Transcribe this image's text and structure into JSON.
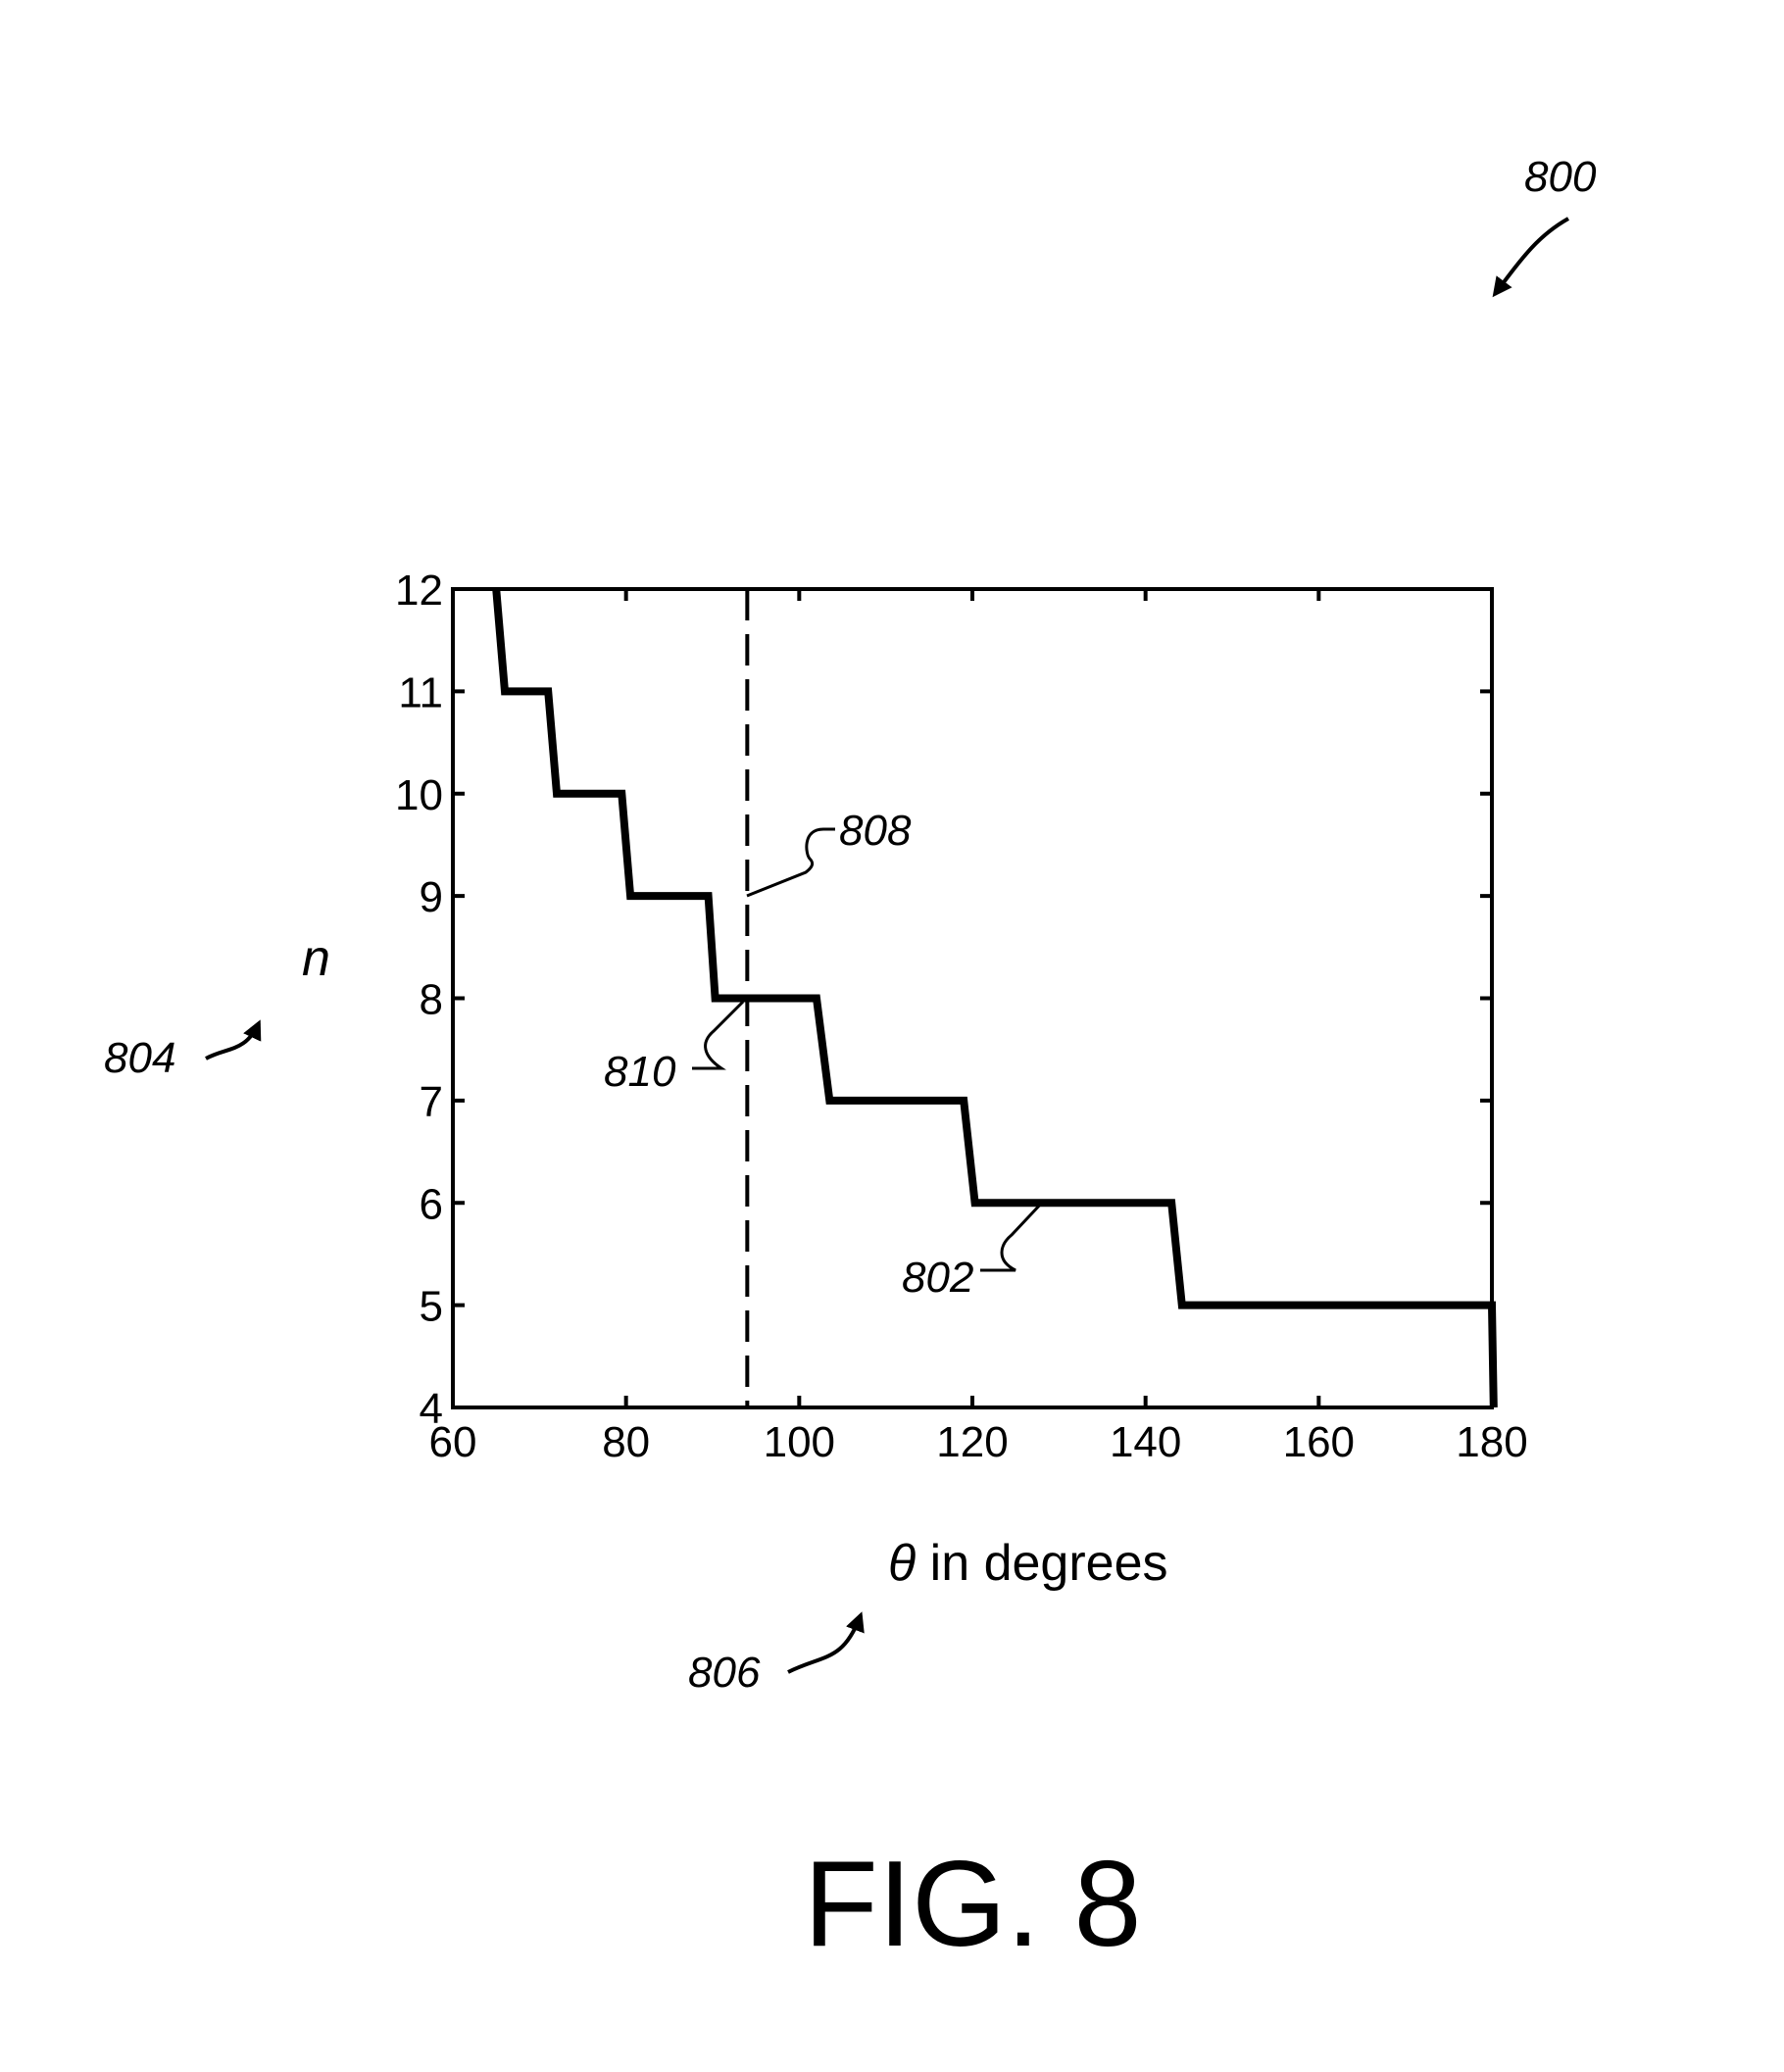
{
  "figure": {
    "reference": "800",
    "caption": "FIG. 8"
  },
  "references": {
    "curve": "802",
    "y_axis": "804",
    "x_axis": "806",
    "vertical_line": "808",
    "intersection": "810"
  },
  "colors": {
    "ink": "#000000",
    "background": "#ffffff"
  },
  "chart_data": {
    "type": "line",
    "xlabel_prefix": "θ",
    "xlabel_suffix": " in degrees",
    "ylabel": "n",
    "xlim": [
      60,
      180
    ],
    "ylim": [
      4,
      12
    ],
    "x_ticks": [
      60,
      80,
      100,
      120,
      140,
      160,
      180
    ],
    "y_ticks": [
      4,
      5,
      6,
      7,
      8,
      9,
      10,
      11,
      12
    ],
    "grid": false,
    "legend": "none",
    "series": [
      {
        "line_style": "solid-thick",
        "points": [
          [
            65,
            12
          ],
          [
            66,
            11
          ],
          [
            71,
            11
          ],
          [
            72,
            10
          ],
          [
            79.5,
            10
          ],
          [
            80.5,
            9
          ],
          [
            89.5,
            9
          ],
          [
            90.3,
            8
          ],
          [
            102,
            8
          ],
          [
            103.5,
            7
          ],
          [
            119,
            7
          ],
          [
            120.3,
            6
          ],
          [
            143,
            6
          ],
          [
            144.2,
            5
          ],
          [
            180,
            5
          ],
          [
            180.2,
            4
          ]
        ]
      }
    ],
    "vertical_line": {
      "x": 94,
      "style": "dashed"
    }
  }
}
